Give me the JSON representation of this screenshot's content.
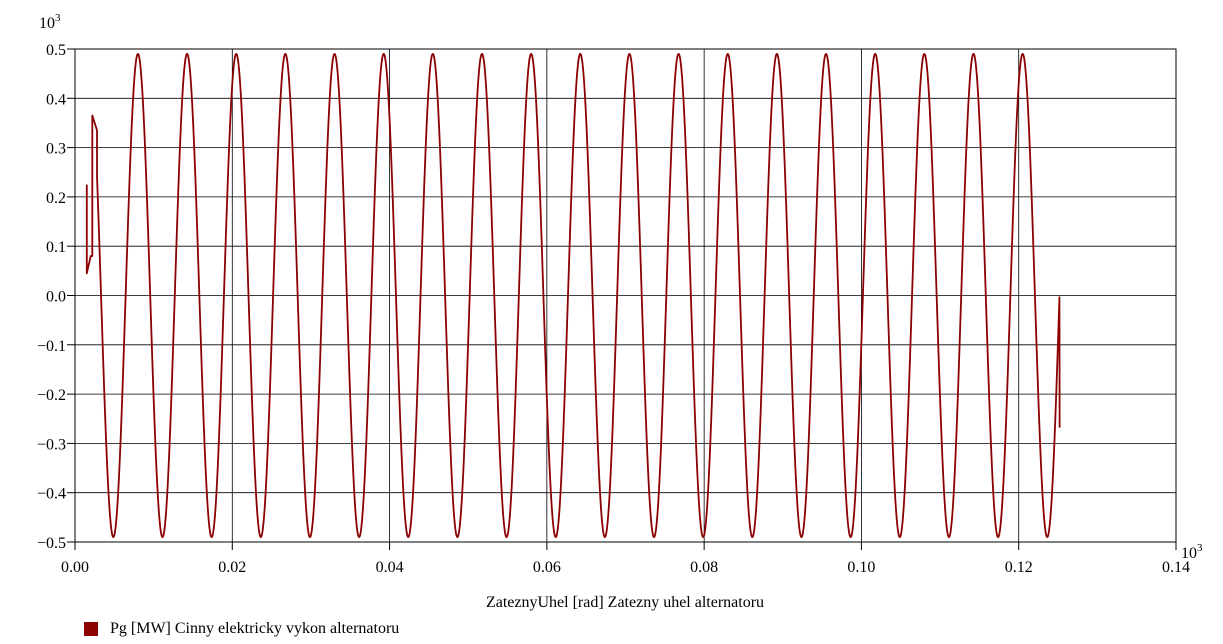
{
  "chart_data": {
    "type": "line",
    "xlabel": "ZateznyUhel [rad] Zatezny uhel alternatoru",
    "x_multiplier": "10",
    "x_multiplier_exp": "3",
    "y_multiplier": "10",
    "y_multiplier_exp": "3",
    "xlim": [
      0.0,
      0.14
    ],
    "ylim": [
      -0.5,
      0.5
    ],
    "x_ticks": [
      "0.00",
      "0.02",
      "0.04",
      "0.06",
      "0.08",
      "0.10",
      "0.12",
      "0.14"
    ],
    "y_ticks": [
      "0.5",
      "0.4",
      "0.3",
      "0.2",
      "0.1",
      "0.0",
      "−0.1",
      "−0.2",
      "−0.3",
      "−0.4",
      "−0.5"
    ],
    "grid": true,
    "legend_position": "bottom-left",
    "series": [
      {
        "name": "Pg [MW] Cinny elektricky vykon alternatoru",
        "color": "#8b0000",
        "oscillation": {
          "amplitude": 0.49,
          "first_peak_x": 0.008,
          "period": 0.00625,
          "end_x": 0.1252,
          "end_y": -0.268
        },
        "initial_points": [
          [
            0.0015,
            0.225
          ],
          [
            0.0015,
            0.045
          ],
          [
            0.002,
            0.08
          ],
          [
            0.0022,
            0.08
          ],
          [
            0.0022,
            0.365
          ],
          [
            0.0028,
            0.335
          ]
        ]
      }
    ]
  }
}
